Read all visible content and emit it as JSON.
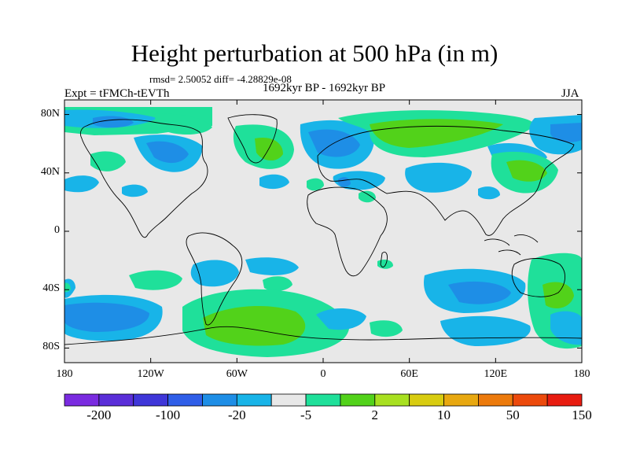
{
  "title": "Height perturbation at 500 hPa (in m)",
  "stats": "rmsd= 2.50052 diff= -4.28829e-08",
  "experiment": "Expt = tFMCh-tEVTh",
  "period": "1692kyr BP - 1692kyr BP",
  "season": "JJA",
  "map": {
    "background_color": "#e8e8e8",
    "y_ticks": [
      {
        "label": "80N",
        "lat": 80
      },
      {
        "label": "40N",
        "lat": 40
      },
      {
        "label": "0",
        "lat": 0
      },
      {
        "label": "40S",
        "lat": -40
      },
      {
        "label": "80S",
        "lat": -80
      }
    ],
    "x_ticks": [
      {
        "label": "180",
        "lon": -180
      },
      {
        "label": "120W",
        "lon": -120
      },
      {
        "label": "60W",
        "lon": -60
      },
      {
        "label": "0",
        "lon": 0
      },
      {
        "label": "60E",
        "lon": 60
      },
      {
        "label": "120E",
        "lon": 120
      },
      {
        "label": "180",
        "lon": 180
      }
    ]
  },
  "colorbar": {
    "colors": [
      "#7a2be0",
      "#5a2ed8",
      "#3f36d8",
      "#2f5ee8",
      "#1e8ee6",
      "#18b4e8",
      "#e8e8e8",
      "#1fe09a",
      "#52d21a",
      "#a8e020",
      "#d8cc10",
      "#e8a810",
      "#ec7a0c",
      "#ec4a0c",
      "#e81c10"
    ],
    "labels": [
      {
        "text": "-200",
        "after_box": 1
      },
      {
        "text": "-100",
        "after_box": 3
      },
      {
        "text": "-20",
        "after_box": 5
      },
      {
        "text": "-5",
        "after_box": 7
      },
      {
        "text": "2",
        "after_box": 9
      },
      {
        "text": "10",
        "after_box": 11
      },
      {
        "text": "50",
        "after_box": 13
      },
      {
        "text": "150",
        "after_box": 15
      }
    ]
  },
  "legend_colors": {
    "negative_light": "#18b4e8",
    "negative_mid": "#1e8ee6",
    "negative_strong": "#2f5ee8",
    "positive_light": "#1fe09a",
    "positive_mid": "#52d21a"
  }
}
